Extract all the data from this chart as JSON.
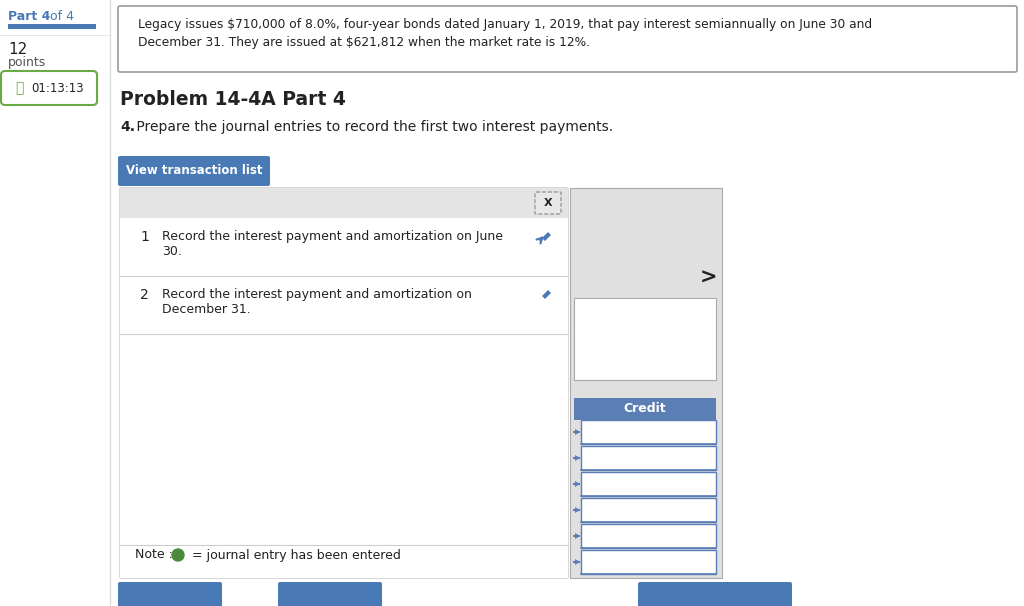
{
  "bg_color": "#ffffff",
  "part_text_bold": "Part 4",
  "part_text_rest": " of 4",
  "part_color": "#4a7ab5",
  "progress_bar_color": "#4a7ab5",
  "timer_text": "01:13:13",
  "info_box_text_line1": "Legacy issues $710,000 of 8.0%, four-year bonds dated January 1, 2019, that pay interest semiannually on June 30 and",
  "info_box_text_line2": "December 31. They are issued at $621,812 when the market rate is 12%.",
  "problem_title": "Problem 14-4A Part 4",
  "question_num": "4.",
  "question_text": " Prepare the journal entries to record the first two interest payments.",
  "button_text": "View transaction list",
  "button_color": "#4a7ab5",
  "button_text_color": "#ffffff",
  "item1_num": "1",
  "item1_text": "Record the interest payment and amortization on June\n30.",
  "item2_num": "2",
  "item2_text": "Record the interest payment and amortization on\nDecember 31.",
  "credit_label": "Credit",
  "panel_bg": "#efefef",
  "panel_top_bg": "#e4e4e4",
  "white": "#ffffff",
  "text_color": "#222222",
  "blue_accent": "#4a7ab5",
  "pencil_color": "#4a7ab5",
  "right_panel_color": "#e0e0e0",
  "credit_box_color": "#5b7fb5",
  "credit_text_color": "#ffffff",
  "input_box_color": "#ffffff",
  "input_border_color": "#5b7fb5",
  "green_dot_color": "#4a8a3a",
  "sep_color": "#cccccc",
  "note_text1": "Note : ",
  "note_text2": " = journal entry has been entered",
  "timer_border_color": "#6aaa44",
  "timer_bg": "#ffffff",
  "hourglass_color": "#6aaa44"
}
